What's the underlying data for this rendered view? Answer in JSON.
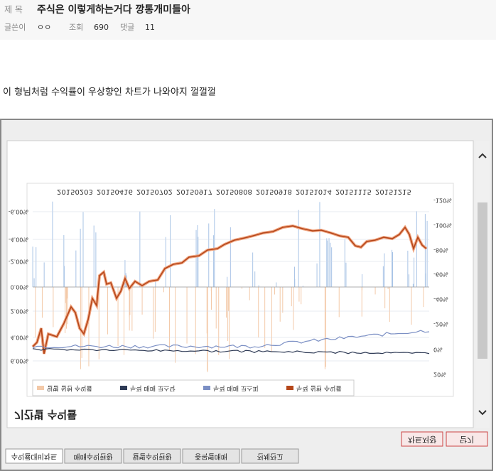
{
  "header": {
    "title_label": "제 목",
    "title": "주식은 이렇게하는거다 깡통개미들아",
    "author_label": "글쓴이",
    "author": "ㅇㅇ",
    "views_label": "조회",
    "views": "690",
    "comments_label": "댓글",
    "comments": "11"
  },
  "body": "이 형님처럼 수익률이 우상향인 차트가 나와야지 껄껄껄",
  "window": {
    "heading": "기간별 수익률",
    "dates": [
      "20150203",
      "20150416",
      "20150702",
      "20150917",
      "20150808",
      "20150918",
      "20151014",
      "20151115",
      "20151215"
    ],
    "left_ticks": [
      "-6.00%",
      "-4.00%",
      "-2.00%",
      "0.00%",
      "2.00%",
      "4.00%",
      "6.00%"
    ],
    "right_ticks": [
      "-120%",
      "-100%",
      "-80%",
      "-60%",
      "-40%",
      "-20%",
      "0%",
      "20%"
    ],
    "legend": [
      "일별 실현 수익률",
      "누적 매매 코스닥",
      "누적 매매 코스피",
      "누적 실현 수익률"
    ],
    "buttons": [
      "차트저장",
      "닫기"
    ],
    "tabs": [
      "수익률대비차트",
      "매매수익현황",
      "월별수익현황",
      "종목별매매",
      "전체잔고"
    ]
  }
}
